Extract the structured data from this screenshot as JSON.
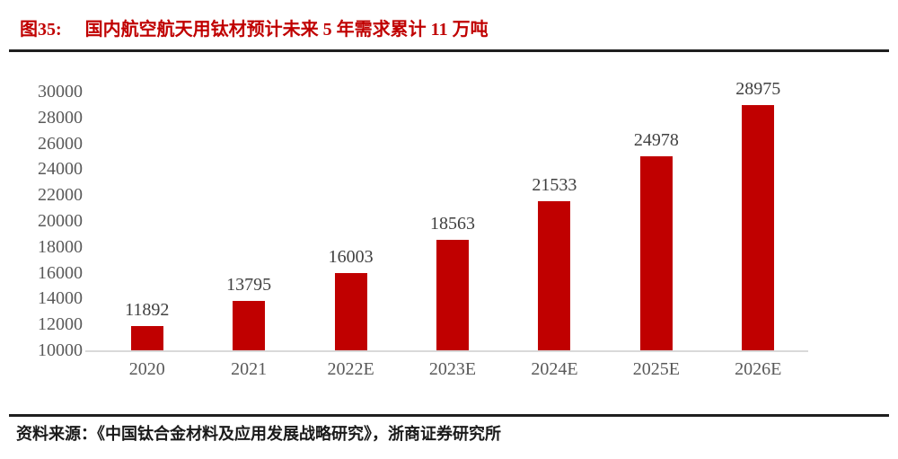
{
  "header": {
    "figure_label": "图35:",
    "title": "国内航空航天用钛材预计未来 5 年需求累计 11 万吨"
  },
  "footer": {
    "source": "资料来源：《中国钛合金材料及应用发展战略研究》，浙商证券研究所"
  },
  "chart_data": {
    "type": "bar",
    "title": "国内航空航天用钛材预计未来 5 年需求累计 11 万吨",
    "categories": [
      "2020",
      "2021",
      "2022E",
      "2023E",
      "2024E",
      "2025E",
      "2026E"
    ],
    "values": [
      11892,
      13795,
      16003,
      18563,
      21533,
      24978,
      28975
    ],
    "xlabel": "",
    "ylabel": "",
    "ylim": [
      10000,
      30000
    ],
    "ytick_step": 2000,
    "yticks": [
      10000,
      12000,
      14000,
      16000,
      18000,
      20000,
      22000,
      24000,
      26000,
      28000,
      30000
    ],
    "grid": false,
    "legend": "none",
    "data_labels": true
  },
  "colors": {
    "title_red": "#c00000",
    "bar": "#c00000",
    "axis_line": "#d9d9d9",
    "tick_text": "#595959",
    "data_label_text": "#404040",
    "rule": "#1f1f1f",
    "source_text": "#1a1a1a"
  }
}
